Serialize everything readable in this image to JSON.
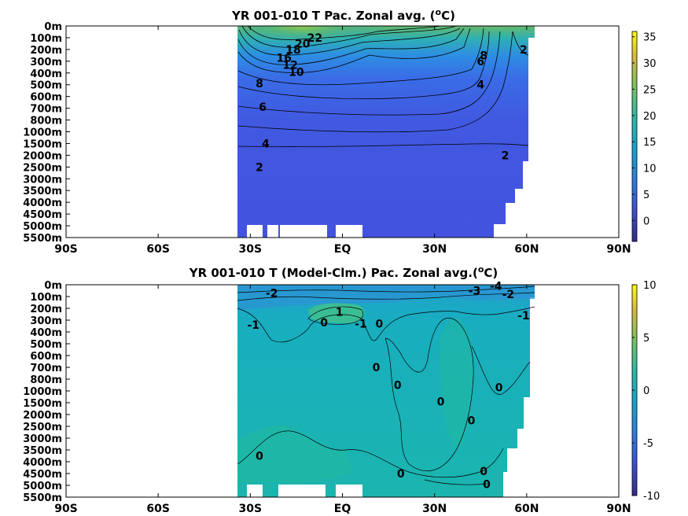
{
  "chart_data": [
    {
      "type": "heatmap",
      "title_main": "YR 001-010 T Pac. Zonal avg. (",
      "title_unit_sup": "o",
      "title_unit_tail": "C)",
      "xticks": [
        "90S",
        "60S",
        "30S",
        "EQ",
        "30N",
        "60N",
        "90N"
      ],
      "xtick_values": [
        -90,
        -60,
        -30,
        0,
        30,
        60,
        90
      ],
      "xlim": [
        -90,
        90
      ],
      "yticks": [
        "0m",
        "100m",
        "200m",
        "300m",
        "400m",
        "500m",
        "600m",
        "700m",
        "800m",
        "1000m",
        "1500m",
        "2000m",
        "2500m",
        "3000m",
        "3500m",
        "4000m",
        "4500m",
        "5000m",
        "5500m"
      ],
      "y_reversed": true,
      "colorbar": {
        "ticks": [
          35,
          30,
          25,
          20,
          15,
          10,
          5,
          0
        ],
        "range": [
          -4,
          36
        ],
        "colormap": "viridis-like"
      },
      "data_extent_lat": [
        -34,
        63
      ],
      "contour_labels": [
        {
          "text": "22",
          "lat": -9,
          "depth_idx": 1.0
        },
        {
          "text": "20",
          "lat": -13,
          "depth_idx": 1.5
        },
        {
          "text": "18",
          "lat": -16,
          "depth_idx": 2.0
        },
        {
          "text": "16",
          "lat": -19,
          "depth_idx": 2.7
        },
        {
          "text": "12",
          "lat": -17,
          "depth_idx": 3.3
        },
        {
          "text": "10",
          "lat": -15,
          "depth_idx": 3.9
        },
        {
          "text": "8",
          "lat": -27,
          "depth_idx": 4.9
        },
        {
          "text": "6",
          "lat": -26,
          "depth_idx": 6.9
        },
        {
          "text": "4",
          "lat": -25,
          "depth_idx": 10.0
        },
        {
          "text": "2",
          "lat": -27,
          "depth_idx": 12.0
        },
        {
          "text": "2",
          "lat": 53,
          "depth_idx": 11.0
        },
        {
          "text": "2",
          "lat": 59,
          "depth_idx": 2.0
        },
        {
          "text": "4",
          "lat": 45,
          "depth_idx": 5.0
        },
        {
          "text": "6",
          "lat": 45,
          "depth_idx": 3.0
        },
        {
          "text": "8",
          "lat": 46,
          "depth_idx": 2.5
        }
      ]
    },
    {
      "type": "heatmap",
      "title_main": "YR 001-010 T (Model-Clm.) Pac. Zonal avg.(",
      "title_unit_sup": "o",
      "title_unit_tail": "C)",
      "xticks": [
        "90S",
        "60S",
        "30S",
        "EQ",
        "30N",
        "60N",
        "90N"
      ],
      "xtick_values": [
        -90,
        -60,
        -30,
        0,
        30,
        60,
        90
      ],
      "xlim": [
        -90,
        90
      ],
      "yticks": [
        "0m",
        "100m",
        "200m",
        "300m",
        "400m",
        "500m",
        "600m",
        "700m",
        "800m",
        "1000m",
        "1500m",
        "2000m",
        "2500m",
        "3000m",
        "3500m",
        "4000m",
        "4500m",
        "5000m",
        "5500m"
      ],
      "y_reversed": true,
      "colorbar": {
        "ticks": [
          10,
          5,
          0,
          -5,
          -10
        ],
        "range": [
          -10,
          10
        ],
        "colormap": "viridis-like"
      },
      "data_extent_lat": [
        -34,
        62
      ],
      "contour_labels": [
        {
          "text": "-2",
          "lat": -23,
          "depth_idx": 0.7
        },
        {
          "text": "1",
          "lat": -1,
          "depth_idx": 2.3
        },
        {
          "text": "-1",
          "lat": -29,
          "depth_idx": 3.4
        },
        {
          "text": "0",
          "lat": -6,
          "depth_idx": 3.2
        },
        {
          "text": "-1",
          "lat": 6,
          "depth_idx": 3.3
        },
        {
          "text": "0",
          "lat": 12,
          "depth_idx": 3.3
        },
        {
          "text": "-3",
          "lat": 43,
          "depth_idx": 0.5
        },
        {
          "text": "-4",
          "lat": 50,
          "depth_idx": 0.1
        },
        {
          "text": "-2",
          "lat": 54,
          "depth_idx": 0.8
        },
        {
          "text": "-1",
          "lat": 59,
          "depth_idx": 2.6
        },
        {
          "text": "0",
          "lat": 11,
          "depth_idx": 7.0
        },
        {
          "text": "0",
          "lat": 18,
          "depth_idx": 8.5
        },
        {
          "text": "0",
          "lat": 32,
          "depth_idx": 9.9
        },
        {
          "text": "0",
          "lat": 51,
          "depth_idx": 8.7
        },
        {
          "text": "0",
          "lat": 42,
          "depth_idx": 11.5
        },
        {
          "text": "0",
          "lat": -27,
          "depth_idx": 14.5
        },
        {
          "text": "0",
          "lat": 19,
          "depth_idx": 16.0
        },
        {
          "text": "0",
          "lat": 46,
          "depth_idx": 15.8
        },
        {
          "text": "0",
          "lat": 47,
          "depth_idx": 16.9
        }
      ]
    }
  ]
}
